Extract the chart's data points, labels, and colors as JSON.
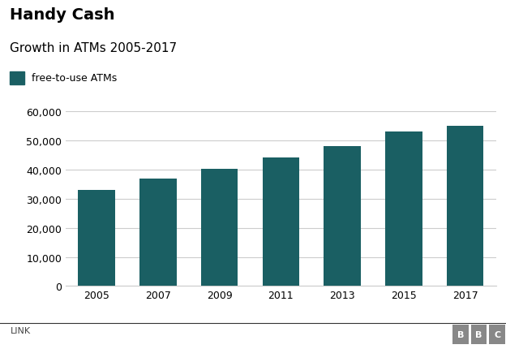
{
  "title": "Handy Cash",
  "subtitle": "Growth in ATMs 2005-2017",
  "legend_label": "free-to-use ATMs",
  "categories": [
    "2005",
    "2007",
    "2009",
    "2011",
    "2013",
    "2015",
    "2017"
  ],
  "values": [
    33000,
    37000,
    40200,
    44000,
    48000,
    53000,
    55000
  ],
  "bar_color": "#1a5f63",
  "background_color": "#ffffff",
  "ylim": [
    0,
    60000
  ],
  "yticks": [
    0,
    10000,
    20000,
    30000,
    40000,
    50000,
    60000
  ],
  "grid_color": "#cccccc",
  "title_fontsize": 14,
  "subtitle_fontsize": 11,
  "tick_fontsize": 9,
  "legend_fontsize": 9,
  "footer_left": "LINK",
  "footer_right": "BBC",
  "text_color": "#000000",
  "footer_color": "#444444",
  "bbc_box_color": "#888888"
}
